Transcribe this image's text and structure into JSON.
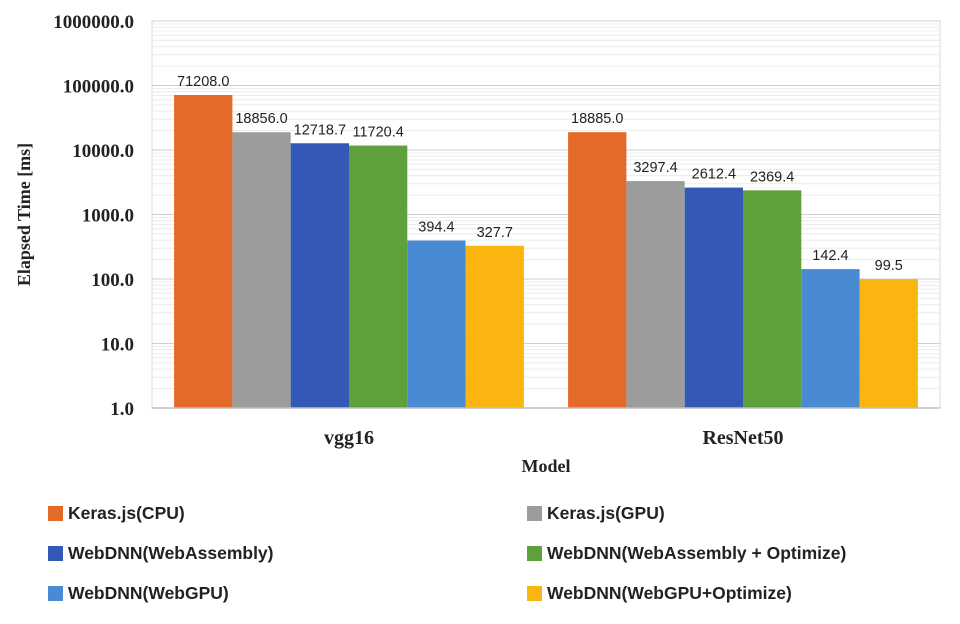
{
  "chart_data": {
    "type": "bar",
    "yscale": "log",
    "ylim": [
      1,
      1000000
    ],
    "y_ticks": [
      "1.0",
      "10.0",
      "100.0",
      "1000.0",
      "10000.0",
      "100000.0",
      "1000000.0"
    ],
    "xlabel": "Model",
    "ylabel": "Elapsed Time [ms]",
    "categories": [
      "vgg16",
      "ResNet50"
    ],
    "grid": true,
    "legend_position": "bottom",
    "series": [
      {
        "name": "Keras.js(CPU)",
        "color": "#e46a2a",
        "values": [
          71208.0,
          18885.0
        ],
        "labels": [
          "71208.0",
          "18885.0"
        ]
      },
      {
        "name": "Keras.js(GPU)",
        "color": "#9c9c9c",
        "values": [
          18856.0,
          3297.4
        ],
        "labels": [
          "18856.0",
          "3297.4"
        ]
      },
      {
        "name": "WebDNN(WebAssembly)",
        "color": "#3358b5",
        "values": [
          12718.7,
          2612.4
        ],
        "labels": [
          "12718.7",
          "2612.4"
        ]
      },
      {
        "name": "WebDNN(WebAssembly + Optimize)",
        "color": "#5ea13b",
        "values": [
          11720.4,
          2369.4
        ],
        "labels": [
          "11720.4",
          "2369.4"
        ]
      },
      {
        "name": "WebDNN(WebGPU)",
        "color": "#4a8ad3",
        "values": [
          394.4,
          142.4
        ],
        "labels": [
          "394.4",
          "142.4"
        ]
      },
      {
        "name": "WebDNN(WebGPU+Optimize)",
        "color": "#fbb511",
        "values": [
          327.7,
          99.5
        ],
        "labels": [
          "327.7",
          "99.5"
        ]
      }
    ]
  }
}
